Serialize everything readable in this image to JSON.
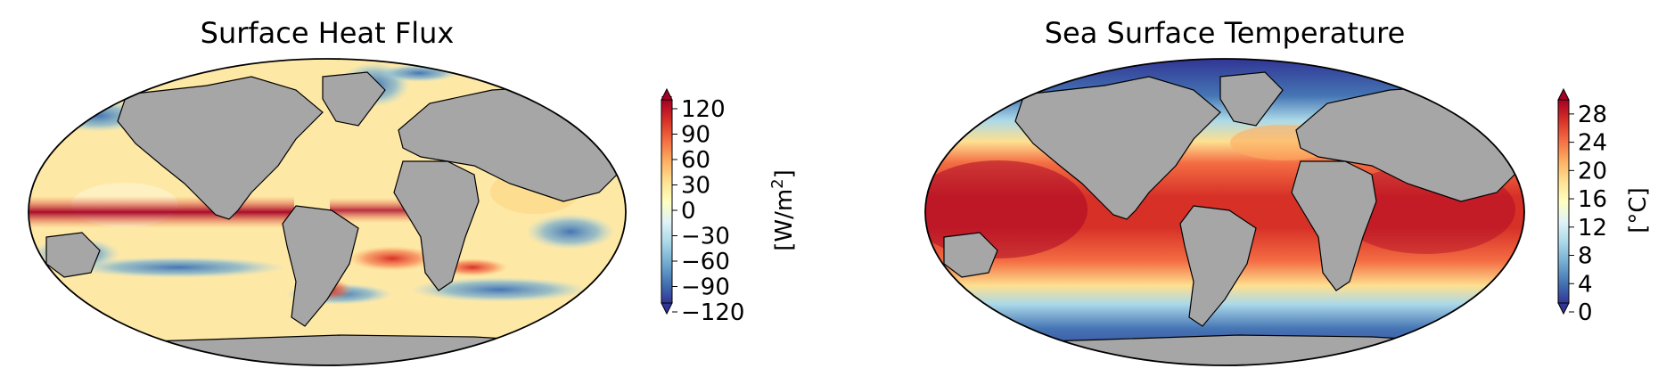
{
  "panels": [
    {
      "title": "Surface Heat Flux",
      "colorbar": {
        "label": "[W/m²]",
        "label_main": "[W/m",
        "label_sup": "2",
        "label_end": "]",
        "ticks": [
          "120",
          "90",
          "60",
          "30",
          "0",
          "−30",
          "−60",
          "−90",
          "−120"
        ],
        "range": [
          -120,
          120
        ],
        "colormap": "RdYlBu_r",
        "extend": "both"
      }
    },
    {
      "title": "Sea Surface Temperature",
      "colorbar": {
        "label": "[°C]",
        "ticks": [
          "28",
          "24",
          "20",
          "16",
          "12",
          "8",
          "4",
          "0"
        ],
        "range": [
          0,
          30
        ],
        "colormap": "RdYlBu_r",
        "extend": "both"
      }
    }
  ],
  "colors": {
    "land": "#a6a6a6",
    "coastline": "#000000",
    "warm_strong": "#a50026",
    "warm": "#d73027",
    "neutral": "#ffffbf",
    "cool": "#74add1",
    "cool_strong": "#313695"
  },
  "map": {
    "projection": "Robinson"
  }
}
